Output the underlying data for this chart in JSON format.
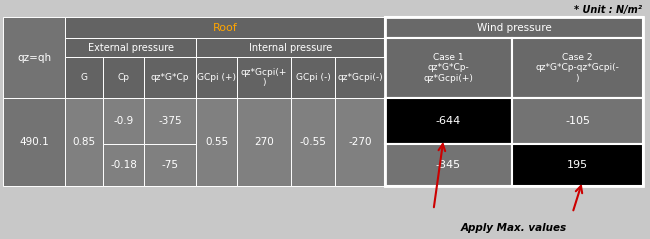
{
  "title_unit": "* Unit : N/m²",
  "roof_label": "Roof",
  "qz_label": "qz=qh",
  "ext_pressure": "External pressure",
  "int_pressure": "Internal pressure",
  "wind_pressure": "Wind pressure",
  "col_headers": [
    "G",
    "Cp",
    "qz*G*Cp",
    "GCpi (+)",
    "qz*Gcpi(+\n)",
    "GCpi (-)",
    "qz*Gcpi(-)"
  ],
  "case1_header": "Case 1\nqz*G*Cp-\nqz*Gcpi(+)",
  "case2_header": "Case 2\nqz*G*Cp-qz*Gcpi(-\n)",
  "qz_val": "490.1",
  "row1_g": "0.85",
  "row1_cp": "-0.9",
  "row1_qzgcp": "-375",
  "row2_cp": "-0.18",
  "row2_qzgcp": "-75",
  "gcpi_pos": "0.55",
  "qz_gcpi_pos": "270",
  "gcpi_neg": "-0.55",
  "qz_gcpi_neg": "-270",
  "wind_r1_c1": "-644",
  "wind_r1_c2": "-105",
  "wind_r2_c1": "-345",
  "wind_r2_c2": "195",
  "apply_max": "Apply Max. values",
  "bg_header": "#636363",
  "bg_subheader": "#737373",
  "bg_data": "#808080",
  "bg_wind_header": "#696969",
  "bg_black": "#000000",
  "text_white": "#ffffff",
  "text_orange": "#FFA500",
  "text_black": "#000000",
  "fig_bg": "#c8c8c8",
  "arrow_color": "#cc0000",
  "lw_inner": 0.7,
  "lw_wind": 1.5
}
